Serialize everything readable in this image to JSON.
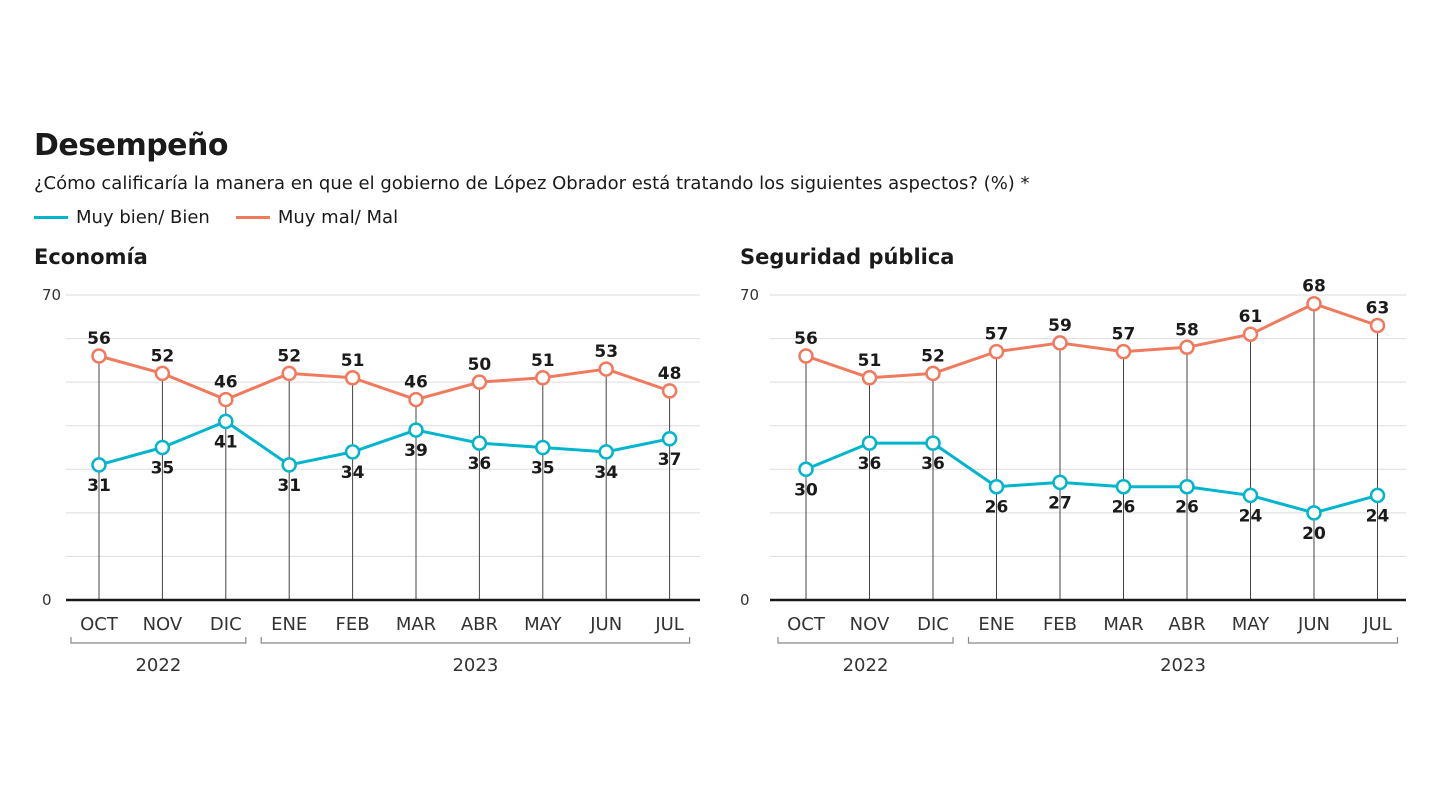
{
  "header": {
    "title": "Desempeño",
    "subtitle": "¿Cómo calificaría la manera en que el gobierno de López Obrador está tratando los siguientes aspectos? (%) *"
  },
  "legend": {
    "items": [
      {
        "label": "Muy bien/ Bien",
        "color": "#00b5cc"
      },
      {
        "label": "Muy mal/ Mal",
        "color": "#f07a5e"
      }
    ]
  },
  "colors": {
    "good": "#00b5cc",
    "bad": "#f07a5e",
    "grid": "#dddddd",
    "axis": "#1a1a1a",
    "stem": "#444444"
  },
  "chart_data": [
    {
      "type": "line",
      "title": "Economía",
      "categories": [
        "OCT",
        "NOV",
        "DIC",
        "ENE",
        "FEB",
        "MAR",
        "ABR",
        "MAY",
        "JUN",
        "JUL"
      ],
      "year_groups": [
        {
          "label": "2022",
          "from": 0,
          "to": 2
        },
        {
          "label": "2023",
          "from": 3,
          "to": 9
        }
      ],
      "ylim": [
        0,
        70
      ],
      "yticks": [
        0,
        70
      ],
      "grid_step": 10,
      "series": [
        {
          "name": "Muy bien/ Bien",
          "values": [
            31,
            35,
            41,
            31,
            34,
            39,
            36,
            35,
            34,
            37
          ]
        },
        {
          "name": "Muy mal/ Mal",
          "values": [
            56,
            52,
            46,
            52,
            51,
            46,
            50,
            51,
            53,
            48
          ]
        }
      ]
    },
    {
      "type": "line",
      "title": "Seguridad pública",
      "categories": [
        "OCT",
        "NOV",
        "DIC",
        "ENE",
        "FEB",
        "MAR",
        "ABR",
        "MAY",
        "JUN",
        "JUL"
      ],
      "year_groups": [
        {
          "label": "2022",
          "from": 0,
          "to": 2
        },
        {
          "label": "2023",
          "from": 3,
          "to": 9
        }
      ],
      "ylim": [
        0,
        70
      ],
      "yticks": [
        0,
        70
      ],
      "grid_step": 10,
      "series": [
        {
          "name": "Muy bien/ Bien",
          "values": [
            30,
            36,
            36,
            26,
            27,
            26,
            26,
            24,
            20,
            24
          ]
        },
        {
          "name": "Muy mal/ Mal",
          "values": [
            56,
            51,
            52,
            57,
            59,
            57,
            58,
            61,
            68,
            63
          ]
        }
      ]
    }
  ]
}
